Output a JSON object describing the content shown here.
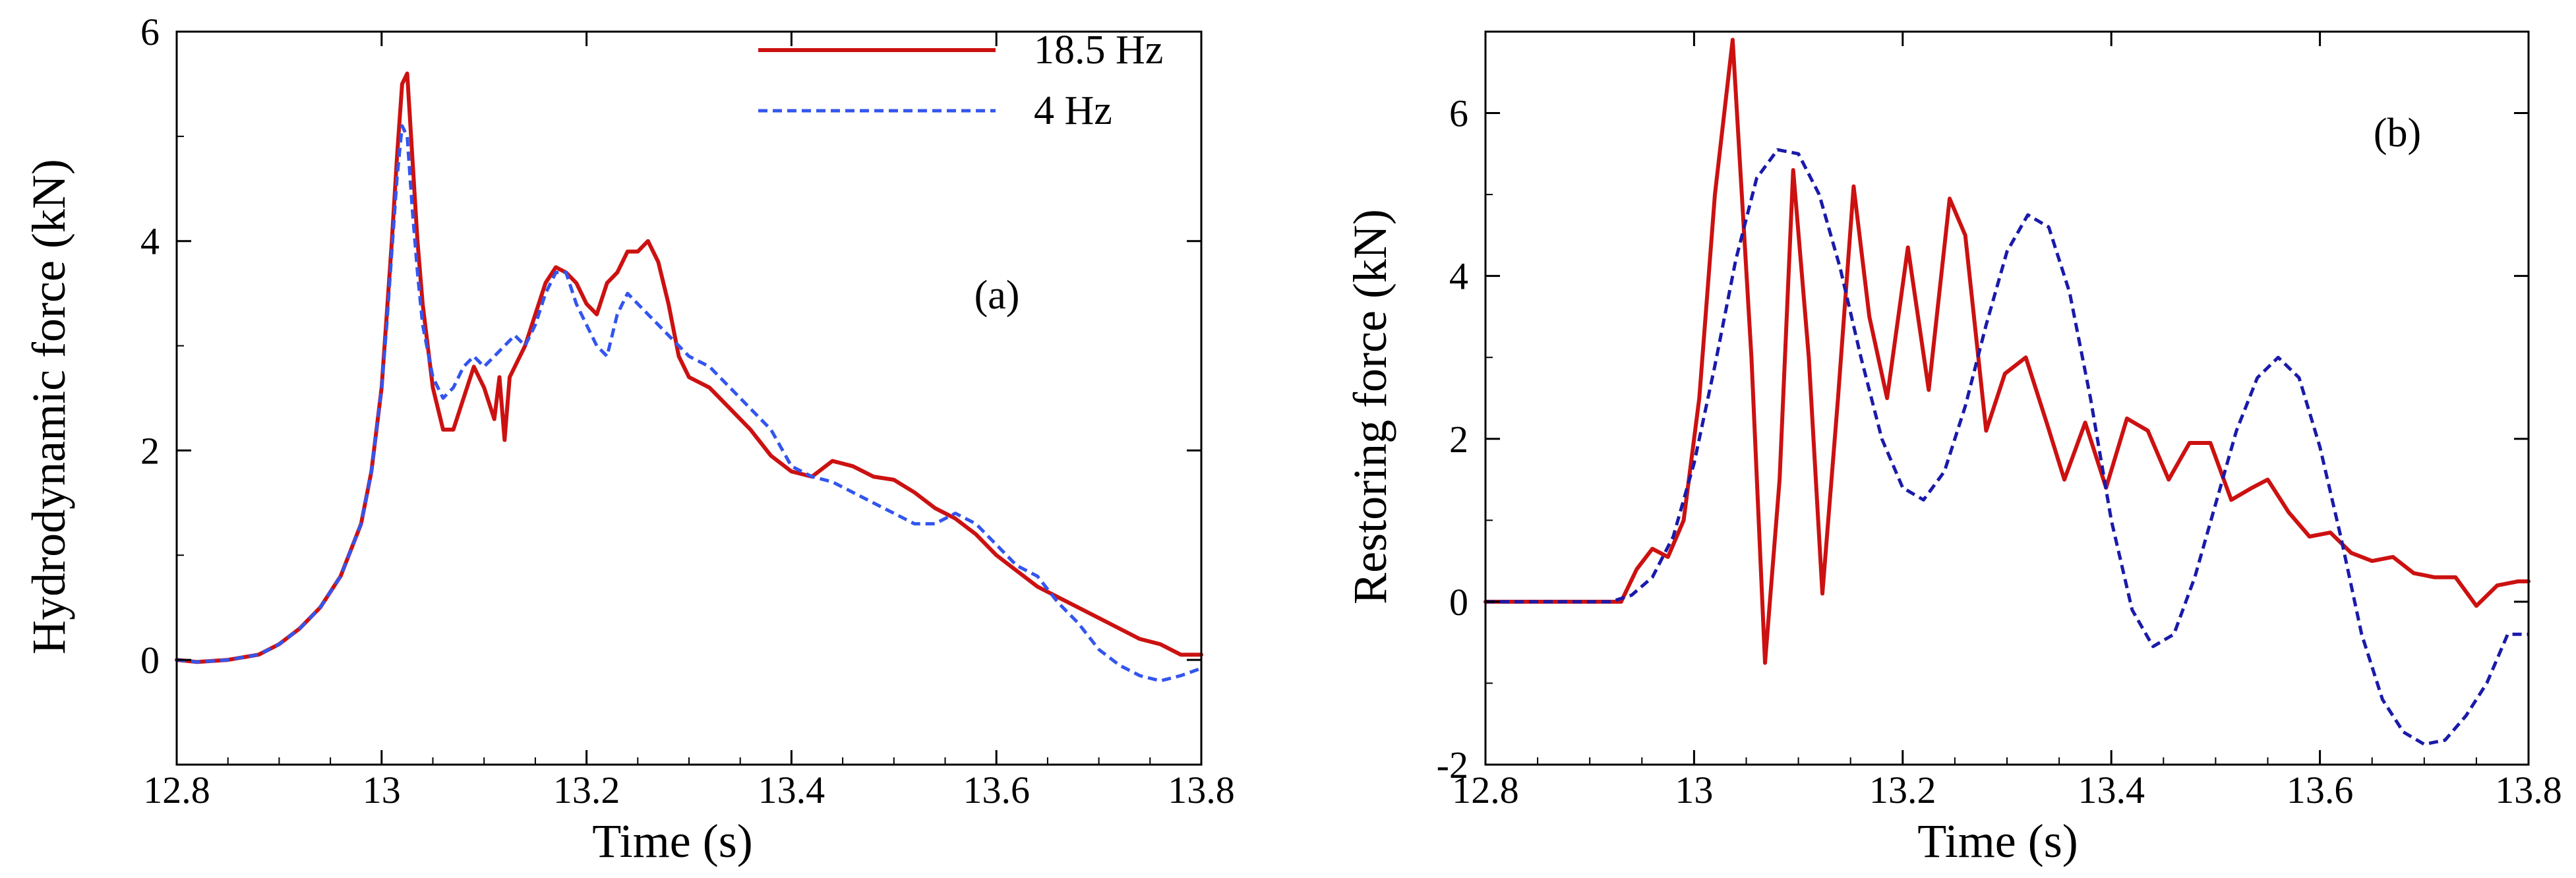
{
  "colors": {
    "red": "#cc1111",
    "blue_a": "#3355ee",
    "blue_b": "#1a1aaa",
    "axis": "#000000",
    "background": "#ffffff"
  },
  "chart_data": [
    {
      "type": "line",
      "panel_label": "(a)",
      "xlabel": "Time (s)",
      "ylabel": "Hydrodynamic force (kN)",
      "xlim": [
        12.8,
        13.8
      ],
      "ylim": [
        -1,
        6
      ],
      "xticks": [
        12.8,
        13.0,
        13.2,
        13.4,
        13.6,
        13.8
      ],
      "xtick_labels": [
        "12.8",
        "13",
        "13.2",
        "13.4",
        "13.6",
        "13.8"
      ],
      "yticks": [
        0,
        2,
        4,
        6
      ],
      "ytick_labels": [
        "0",
        "2",
        "4",
        "6"
      ],
      "grid": false,
      "legend_position": "top",
      "series": [
        {
          "name": "18.5 Hz",
          "style": "solid",
          "x": [
            12.8,
            12.82,
            12.85,
            12.88,
            12.9,
            12.92,
            12.94,
            12.96,
            12.98,
            12.99,
            13.0,
            13.005,
            13.01,
            13.015,
            13.02,
            13.025,
            13.03,
            13.035,
            13.04,
            13.05,
            13.06,
            13.07,
            13.08,
            13.09,
            13.1,
            13.11,
            13.115,
            13.12,
            13.125,
            13.13,
            13.14,
            13.15,
            13.16,
            13.17,
            13.18,
            13.19,
            13.2,
            13.21,
            13.22,
            13.23,
            13.24,
            13.25,
            13.26,
            13.27,
            13.28,
            13.29,
            13.3,
            13.32,
            13.34,
            13.36,
            13.38,
            13.4,
            13.42,
            13.44,
            13.46,
            13.48,
            13.5,
            13.52,
            13.54,
            13.56,
            13.58,
            13.6,
            13.62,
            13.64,
            13.66,
            13.68,
            13.7,
            13.72,
            13.74,
            13.76,
            13.78,
            13.8
          ],
          "y": [
            0.0,
            -0.02,
            0.0,
            0.05,
            0.15,
            0.3,
            0.5,
            0.8,
            1.3,
            1.8,
            2.6,
            3.3,
            4.0,
            4.8,
            5.5,
            5.6,
            4.8,
            4.0,
            3.4,
            2.6,
            2.2,
            2.2,
            2.5,
            2.8,
            2.6,
            2.3,
            2.7,
            2.1,
            2.7,
            2.8,
            3.0,
            3.3,
            3.6,
            3.75,
            3.7,
            3.6,
            3.4,
            3.3,
            3.6,
            3.7,
            3.9,
            3.9,
            4.0,
            3.8,
            3.4,
            2.9,
            2.7,
            2.6,
            2.4,
            2.2,
            1.95,
            1.8,
            1.75,
            1.9,
            1.85,
            1.75,
            1.72,
            1.6,
            1.45,
            1.35,
            1.2,
            1.0,
            0.85,
            0.7,
            0.6,
            0.5,
            0.4,
            0.3,
            0.2,
            0.15,
            0.05,
            0.05
          ]
        },
        {
          "name": "4 Hz",
          "style": "dashed",
          "x": [
            12.8,
            12.82,
            12.85,
            12.88,
            12.9,
            12.92,
            12.94,
            12.96,
            12.98,
            12.99,
            13.0,
            13.005,
            13.01,
            13.015,
            13.02,
            13.025,
            13.03,
            13.035,
            13.04,
            13.05,
            13.06,
            13.07,
            13.08,
            13.09,
            13.1,
            13.11,
            13.12,
            13.13,
            13.14,
            13.15,
            13.16,
            13.17,
            13.18,
            13.19,
            13.2,
            13.21,
            13.22,
            13.23,
            13.24,
            13.25,
            13.26,
            13.27,
            13.28,
            13.3,
            13.32,
            13.34,
            13.36,
            13.38,
            13.4,
            13.42,
            13.44,
            13.46,
            13.48,
            13.5,
            13.52,
            13.54,
            13.56,
            13.58,
            13.6,
            13.62,
            13.64,
            13.66,
            13.68,
            13.7,
            13.72,
            13.74,
            13.76,
            13.78,
            13.8
          ],
          "y": [
            0.0,
            -0.02,
            0.0,
            0.05,
            0.15,
            0.3,
            0.5,
            0.8,
            1.3,
            1.8,
            2.6,
            3.2,
            3.9,
            4.6,
            5.1,
            5.0,
            4.3,
            3.7,
            3.2,
            2.7,
            2.5,
            2.6,
            2.8,
            2.9,
            2.8,
            2.9,
            3.0,
            3.1,
            3.0,
            3.2,
            3.5,
            3.7,
            3.7,
            3.4,
            3.2,
            3.0,
            2.9,
            3.3,
            3.5,
            3.4,
            3.3,
            3.2,
            3.1,
            2.9,
            2.8,
            2.6,
            2.4,
            2.2,
            1.85,
            1.75,
            1.7,
            1.6,
            1.5,
            1.4,
            1.3,
            1.3,
            1.4,
            1.3,
            1.1,
            0.9,
            0.8,
            0.55,
            0.35,
            0.1,
            -0.05,
            -0.15,
            -0.2,
            -0.15,
            -0.08
          ]
        }
      ]
    },
    {
      "type": "line",
      "panel_label": "(b)",
      "xlabel": "Time (s)",
      "ylabel": "Restoring force (kN)",
      "xlim": [
        12.8,
        13.8
      ],
      "ylim": [
        -2,
        7
      ],
      "xticks": [
        12.8,
        13.0,
        13.2,
        13.4,
        13.6,
        13.8
      ],
      "xtick_labels": [
        "12.8",
        "13",
        "13.2",
        "13.4",
        "13.6",
        "13.8"
      ],
      "yticks": [
        -2,
        0,
        2,
        4,
        6
      ],
      "ytick_labels": [
        "-2",
        "0",
        "2",
        "4",
        "6"
      ],
      "grid": false,
      "series": [
        {
          "name": "18.5 Hz",
          "style": "solid",
          "x": [
            12.8,
            12.93,
            12.945,
            12.96,
            12.975,
            12.99,
            13.005,
            13.02,
            13.037,
            13.055,
            13.068,
            13.082,
            13.095,
            13.11,
            13.123,
            13.138,
            13.153,
            13.168,
            13.185,
            13.205,
            13.225,
            13.245,
            13.26,
            13.28,
            13.298,
            13.318,
            13.338,
            13.355,
            13.375,
            13.395,
            13.415,
            13.435,
            13.455,
            13.475,
            13.495,
            13.515,
            13.535,
            13.55,
            13.57,
            13.59,
            13.61,
            13.63,
            13.65,
            13.67,
            13.69,
            13.71,
            13.73,
            13.75,
            13.77,
            13.79,
            13.8
          ],
          "y": [
            0.0,
            0.0,
            0.4,
            0.65,
            0.55,
            1.0,
            2.5,
            5.0,
            6.9,
            3.0,
            -0.75,
            1.5,
            5.3,
            3.0,
            0.1,
            2.5,
            5.1,
            3.5,
            2.5,
            4.35,
            2.6,
            4.95,
            4.5,
            2.1,
            2.8,
            3.0,
            2.2,
            1.5,
            2.2,
            1.4,
            2.25,
            2.1,
            1.5,
            1.95,
            1.95,
            1.25,
            1.4,
            1.5,
            1.1,
            0.8,
            0.85,
            0.6,
            0.5,
            0.55,
            0.35,
            0.3,
            0.3,
            -0.05,
            0.2,
            0.25,
            0.25
          ]
        },
        {
          "name": "4 Hz",
          "style": "dashed",
          "x": [
            12.8,
            12.92,
            12.94,
            12.96,
            12.98,
            13.0,
            13.02,
            13.04,
            13.06,
            13.08,
            13.1,
            13.12,
            13.14,
            13.16,
            13.18,
            13.2,
            13.22,
            13.24,
            13.26,
            13.28,
            13.3,
            13.32,
            13.34,
            13.36,
            13.38,
            13.4,
            13.42,
            13.44,
            13.46,
            13.48,
            13.5,
            13.52,
            13.54,
            13.56,
            13.58,
            13.6,
            13.62,
            13.64,
            13.66,
            13.68,
            13.7,
            13.72,
            13.74,
            13.76,
            13.78,
            13.8
          ],
          "y": [
            0.0,
            0.0,
            0.08,
            0.3,
            0.8,
            1.7,
            2.9,
            4.2,
            5.2,
            5.55,
            5.5,
            5.0,
            4.1,
            3.0,
            2.0,
            1.4,
            1.25,
            1.6,
            2.4,
            3.4,
            4.3,
            4.75,
            4.6,
            3.8,
            2.5,
            1.0,
            -0.1,
            -0.55,
            -0.4,
            0.3,
            1.2,
            2.1,
            2.75,
            3.0,
            2.75,
            1.9,
            0.8,
            -0.4,
            -1.2,
            -1.6,
            -1.75,
            -1.7,
            -1.4,
            -1.0,
            -0.4,
            -0.4
          ]
        }
      ]
    }
  ]
}
